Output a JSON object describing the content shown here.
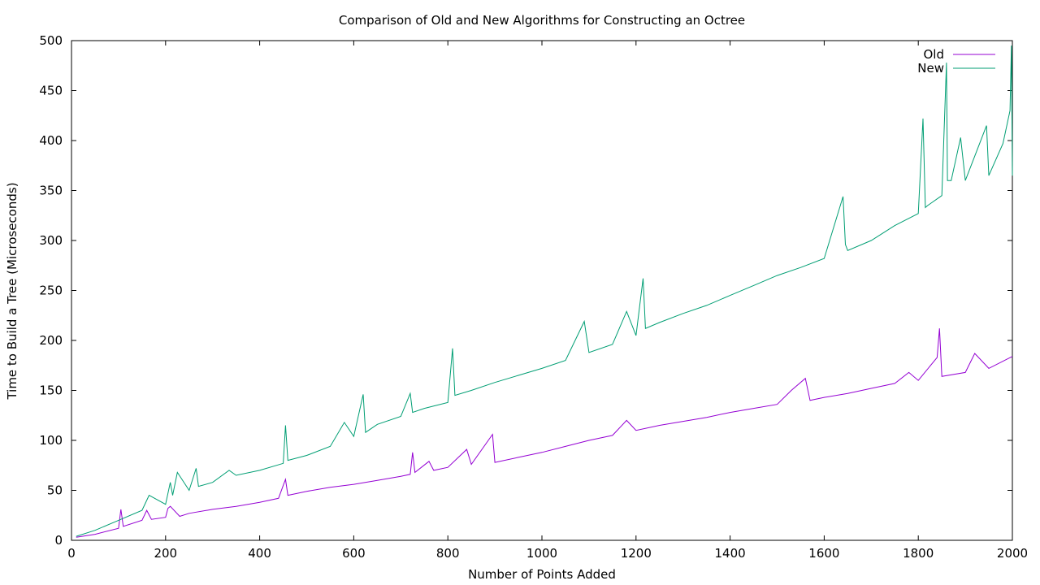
{
  "chart_data": {
    "type": "line",
    "title": "Comparison of Old and New Algorithms for Constructing an Octree",
    "xlabel": "Number of Points Added",
    "ylabel": "Time to Build a Tree (Microseconds)",
    "xlim": [
      0,
      2000
    ],
    "ylim": [
      0,
      500
    ],
    "xticks": [
      0,
      200,
      400,
      600,
      800,
      1000,
      1200,
      1400,
      1600,
      1800,
      2000
    ],
    "yticks": [
      0,
      50,
      100,
      150,
      200,
      250,
      300,
      350,
      400,
      450,
      500
    ],
    "grid": false,
    "legend_position": "top-right",
    "series": [
      {
        "name": "Old",
        "color": "#9400d3",
        "x": [
          10,
          50,
          100,
          105,
          110,
          150,
          160,
          170,
          200,
          205,
          210,
          230,
          250,
          300,
          350,
          400,
          440,
          450,
          455,
          460,
          500,
          550,
          600,
          650,
          700,
          720,
          725,
          730,
          760,
          770,
          800,
          840,
          850,
          895,
          900,
          950,
          1000,
          1050,
          1100,
          1150,
          1180,
          1200,
          1250,
          1300,
          1350,
          1400,
          1450,
          1500,
          1530,
          1560,
          1570,
          1600,
          1650,
          1700,
          1750,
          1780,
          1800,
          1840,
          1845,
          1850,
          1900,
          1920,
          1950,
          2000
        ],
        "values": [
          3,
          6,
          12,
          31,
          14,
          20,
          30,
          21,
          23,
          32,
          34,
          24,
          27,
          31,
          34,
          38,
          42,
          55,
          61,
          45,
          49,
          53,
          56,
          60,
          64,
          66,
          88,
          68,
          79,
          70,
          73,
          91,
          76,
          106,
          78,
          83,
          88,
          94,
          100,
          105,
          120,
          110,
          115,
          119,
          123,
          128,
          132,
          136,
          150,
          162,
          140,
          143,
          147,
          152,
          157,
          168,
          160,
          183,
          212,
          164,
          168,
          187,
          172,
          184
        ]
      },
      {
        "name": "New",
        "color": "#009e73",
        "x": [
          10,
          50,
          100,
          150,
          165,
          200,
          210,
          215,
          225,
          250,
          265,
          270,
          300,
          335,
          350,
          400,
          450,
          455,
          460,
          500,
          550,
          580,
          600,
          620,
          625,
          650,
          700,
          720,
          725,
          750,
          800,
          810,
          815,
          850,
          900,
          950,
          1000,
          1050,
          1090,
          1100,
          1150,
          1180,
          1200,
          1215,
          1220,
          1250,
          1300,
          1350,
          1400,
          1450,
          1500,
          1550,
          1600,
          1640,
          1645,
          1650,
          1700,
          1750,
          1800,
          1810,
          1815,
          1820,
          1850,
          1860,
          1862,
          1870,
          1890,
          1900,
          1945,
          1950,
          1980,
          2000,
          1998,
          1995
        ],
        "values": [
          4,
          10,
          20,
          30,
          45,
          36,
          58,
          45,
          68,
          50,
          72,
          54,
          58,
          70,
          65,
          70,
          77,
          115,
          80,
          85,
          94,
          118,
          104,
          146,
          108,
          116,
          124,
          147,
          128,
          132,
          138,
          192,
          145,
          150,
          158,
          165,
          172,
          180,
          219,
          188,
          196,
          229,
          205,
          262,
          212,
          218,
          227,
          235,
          245,
          255,
          265,
          273,
          282,
          344,
          296,
          290,
          300,
          315,
          327,
          422,
          333,
          335,
          345,
          478,
          360,
          360,
          403,
          360,
          415,
          365,
          397,
          365,
          495,
          430
        ]
      }
    ]
  }
}
